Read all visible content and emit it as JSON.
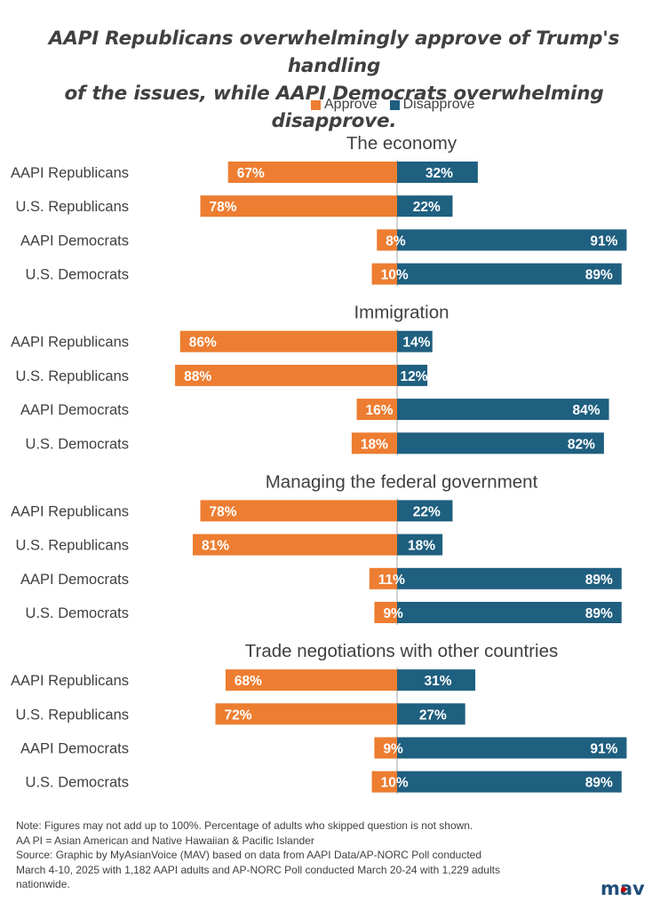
{
  "title_line1": "AAPI Republicans overwhelmingly approve of Trump's handling",
  "title_line2": "of the issues, while AAPI Democrats overwhelming disapprove.",
  "legend": {
    "approve": "Approve",
    "disapprove": "Disapprove"
  },
  "colors": {
    "approve": "#ED7D31",
    "disapprove": "#1F5F7F",
    "divider": "#A6A6A6",
    "logo_text": "#1F4E79",
    "logo_accent": "#C00000"
  },
  "chart_data": {
    "type": "bar",
    "orientation": "horizontal-diverging",
    "categories": [
      "AAPI Republicans",
      "U.S. Republicans",
      "AAPI Democrats",
      "U.S. Democrats"
    ],
    "panels": [
      {
        "title": "The economy",
        "series": [
          {
            "name": "Approve",
            "values": [
              67,
              78,
              8,
              10
            ]
          },
          {
            "name": "Disapprove",
            "values": [
              32,
              22,
              91,
              89
            ]
          }
        ]
      },
      {
        "title": "Immigration",
        "series": [
          {
            "name": "Approve",
            "values": [
              86,
              88,
              16,
              18
            ]
          },
          {
            "name": "Disapprove",
            "values": [
              14,
              12,
              84,
              82
            ]
          }
        ]
      },
      {
        "title": "Managing the federal government",
        "series": [
          {
            "name": "Approve",
            "values": [
              78,
              81,
              11,
              9
            ]
          },
          {
            "name": "Disapprove",
            "values": [
              22,
              18,
              89,
              89
            ]
          }
        ]
      },
      {
        "title": "Trade negotiations with other countries",
        "series": [
          {
            "name": "Approve",
            "values": [
              68,
              72,
              9,
              10
            ]
          },
          {
            "name": "Disapprove",
            "values": [
              31,
              27,
              91,
              89
            ]
          }
        ]
      }
    ],
    "value_suffix": "%",
    "legend_position": "top-center",
    "grid": false
  },
  "footnote": {
    "line1": "Note: Figures may not add up to 100%. Percentage of adults who skipped  question is not shown.",
    "line2": "AA PI = Asian American and Native Hawaiian & Pacific Islander",
    "line3": "Source:  Graphic by MyAsianVoice (MAV) based on data from AAPI Data/AP-NORC Poll conducted",
    "line4": "March 4-10, 2025 with 1,182 AAPI adults and AP-NORC Poll conducted March 20-24 with 1,229 adults",
    "line5": "nationwide."
  },
  "logo": {
    "text": "mav"
  }
}
